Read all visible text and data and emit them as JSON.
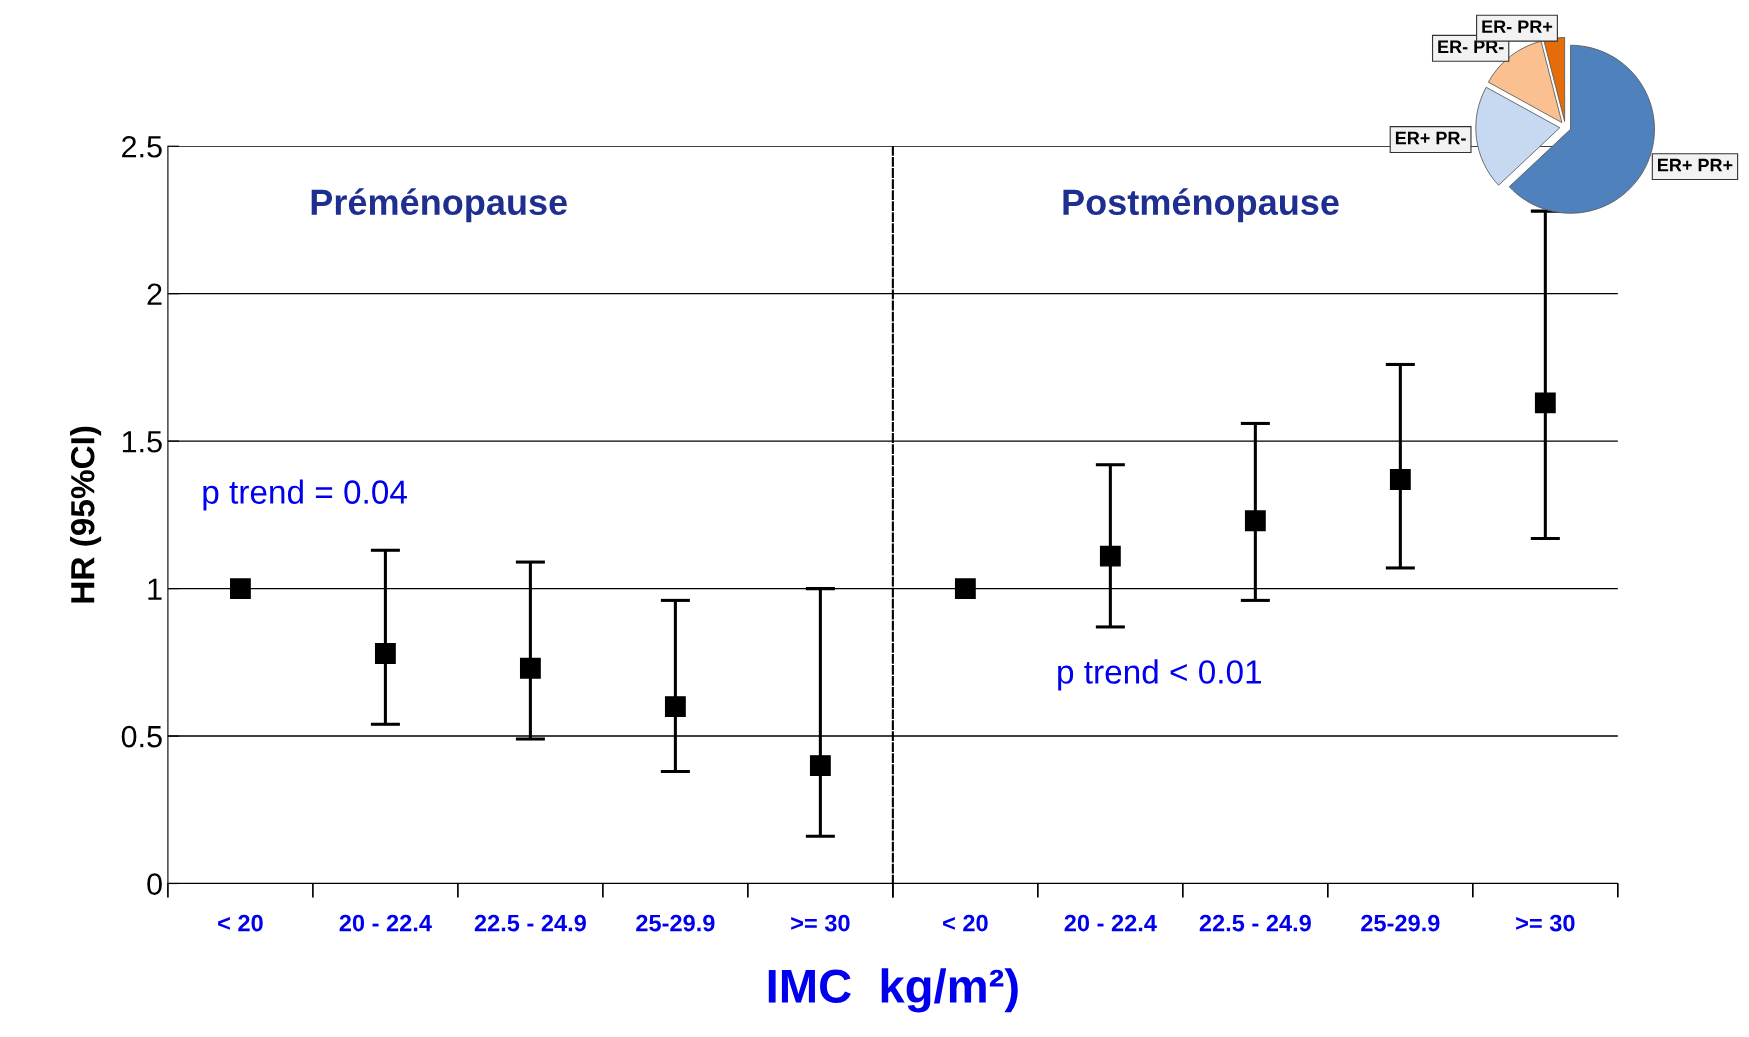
{
  "chart_data": [
    {
      "type": "scatter",
      "ylabel": "HR (95%CI)",
      "xlabel": "IMC  kg/m²)",
      "categories": [
        "< 20",
        "20 - 22.4",
        "22.5 - 24.9",
        "25-29.9",
        ">= 30"
      ],
      "series": [
        {
          "color": "#000000",
          "values": [
            1,
            0.78,
            0.73,
            0.6,
            0.4
          ],
          "errors": [
            null,
            [
              0.54,
              1.13
            ],
            [
              0.49,
              1.09
            ],
            [
              0.38,
              0.96
            ],
            [
              0.16,
              1.0
            ]
          ]
        }
      ],
      "marker": "square",
      "ylim": [
        0,
        2.5
      ],
      "yticks": [
        0,
        0.5,
        1,
        1.5,
        2,
        2.5
      ],
      "grid": "y",
      "legend": false,
      "annotations": [
        "Préménopause",
        "p trend = 0.04"
      ]
    },
    {
      "type": "scatter",
      "categories": [
        "< 20",
        "20 - 22.4",
        "22.5 - 24.9",
        "25-29.9",
        ">= 30"
      ],
      "series": [
        {
          "color": "#000000",
          "values": [
            1,
            1.11,
            1.23,
            1.37,
            1.63
          ],
          "errors": [
            null,
            [
              0.87,
              1.42
            ],
            [
              0.96,
              1.56
            ],
            [
              1.07,
              1.76
            ],
            [
              1.17,
              2.28
            ]
          ]
        }
      ],
      "marker": "square",
      "ylim": [
        0,
        2.5
      ],
      "yticks": [
        0,
        0.5,
        1,
        1.5,
        2,
        2.5
      ],
      "grid": "y",
      "legend": false,
      "tick_labels": "x",
      "annotations": [
        "Postménopause",
        "p trend < 0.01"
      ]
    },
    {
      "type": "pie",
      "categories": [
        "ER+ PR+",
        "ER+ PR-",
        "ER- PR-",
        "ER- PR+"
      ],
      "values": [
        63,
        20,
        13,
        4
      ],
      "colors": [
        "#4f81bd",
        "#c6d9f1",
        "#fac090",
        "#e46c0a"
      ],
      "legend": false
    }
  ]
}
